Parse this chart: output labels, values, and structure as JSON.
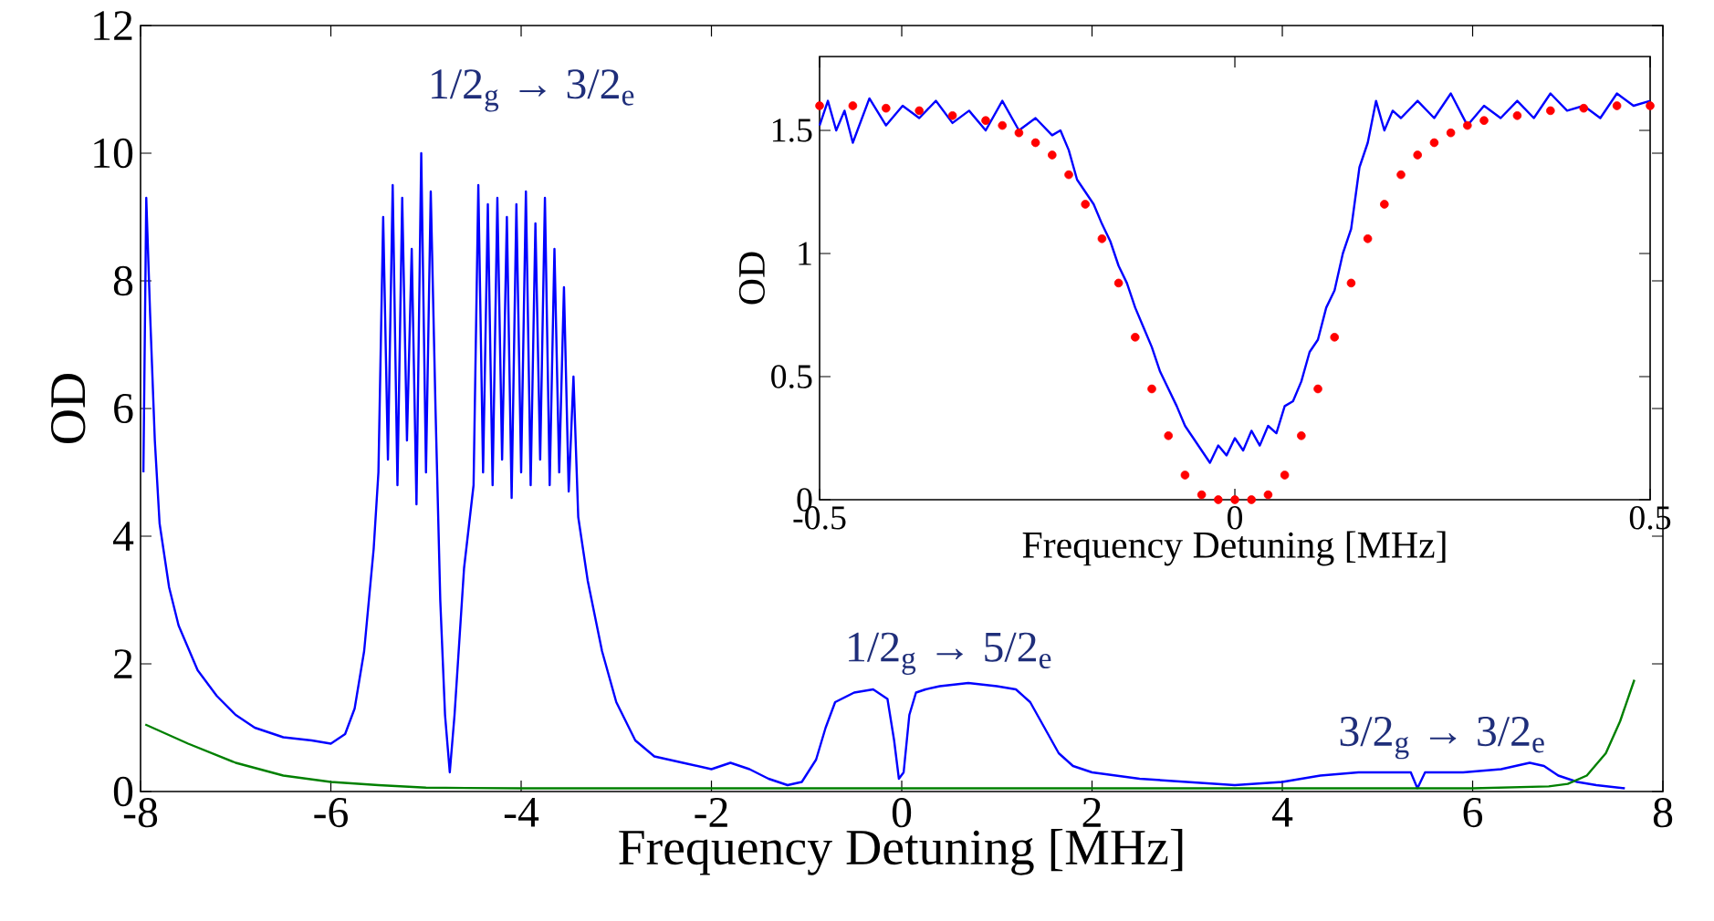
{
  "chart_data": [
    {
      "type": "line",
      "xlabel": "Frequency Detuning [MHz]",
      "ylabel": "OD",
      "xlim": [
        -8,
        8
      ],
      "ylim": [
        0,
        12
      ],
      "xticks": [
        -8,
        -6,
        -4,
        -2,
        0,
        2,
        4,
        6,
        8
      ],
      "yticks": [
        0,
        2,
        4,
        6,
        8,
        10,
        12
      ],
      "annotations": [
        "1/2$_{g}$ → 3/2$_{e}$",
        "1/2$_{g}$ → 5/2$_{e}$",
        "3/2$_{g}$ → 3/2$_{e}$"
      ],
      "series": [
        {
          "color": "#0000ff",
          "x": [
            -7.97,
            -7.94,
            -7.9,
            -7.85,
            -7.8,
            -7.7,
            -7.6,
            -7.4,
            -7.2,
            -7.0,
            -6.8,
            -6.5,
            -6.2,
            -6.0,
            -5.85,
            -5.75,
            -5.65,
            -5.55,
            -5.5,
            -5.45,
            -5.4,
            -5.35,
            -5.3,
            -5.25,
            -5.2,
            -5.15,
            -5.1,
            -5.05,
            -5.0,
            -4.95,
            -4.9,
            -4.85,
            -4.8,
            -4.75,
            -4.7,
            -4.6,
            -4.5,
            -4.45,
            -4.4,
            -4.35,
            -4.3,
            -4.25,
            -4.2,
            -4.15,
            -4.1,
            -4.05,
            -4.0,
            -3.95,
            -3.9,
            -3.85,
            -3.8,
            -3.75,
            -3.7,
            -3.65,
            -3.6,
            -3.55,
            -3.5,
            -3.45,
            -3.4,
            -3.3,
            -3.15,
            -3.0,
            -2.8,
            -2.6,
            -2.3,
            -2.0,
            -1.8,
            -1.6,
            -1.4,
            -1.2,
            -1.05,
            -0.9,
            -0.8,
            -0.7,
            -0.5,
            -0.3,
            -0.15,
            -0.08,
            -0.03,
            0.02,
            0.08,
            0.15,
            0.25,
            0.4,
            0.7,
            1.0,
            1.2,
            1.35,
            1.5,
            1.65,
            1.8,
            2.0,
            2.5,
            3.0,
            3.5,
            4.0,
            4.4,
            4.8,
            5.2,
            5.35,
            5.42,
            5.5,
            5.9,
            6.3,
            6.6,
            6.75,
            6.9,
            7.1,
            7.3,
            7.6
          ],
          "values": [
            5,
            9.3,
            7.5,
            5.5,
            4.2,
            3.2,
            2.6,
            1.9,
            1.5,
            1.2,
            1.0,
            0.85,
            0.8,
            0.75,
            0.9,
            1.3,
            2.2,
            3.8,
            5,
            9,
            5.2,
            9.5,
            4.8,
            9.3,
            5.5,
            8.5,
            4.5,
            10,
            5,
            9.4,
            6,
            3,
            1.2,
            0.3,
            1.2,
            3.5,
            4.8,
            9.5,
            5,
            9.2,
            4.8,
            9.3,
            5.2,
            9,
            4.6,
            9.2,
            5,
            9.4,
            4.8,
            8.9,
            5.2,
            9.3,
            4.8,
            8.5,
            5,
            7.9,
            4.7,
            6.5,
            4.3,
            3.3,
            2.2,
            1.4,
            0.8,
            0.55,
            0.45,
            0.35,
            0.45,
            0.35,
            0.2,
            0.1,
            0.15,
            0.5,
            1.0,
            1.4,
            1.55,
            1.6,
            1.45,
            0.8,
            0.2,
            0.3,
            1.2,
            1.55,
            1.6,
            1.65,
            1.7,
            1.65,
            1.6,
            1.4,
            1.0,
            0.6,
            0.4,
            0.3,
            0.2,
            0.15,
            0.1,
            0.15,
            0.25,
            0.3,
            0.3,
            0.3,
            0.05,
            0.3,
            0.3,
            0.35,
            0.45,
            0.4,
            0.25,
            0.15,
            0.1,
            0.05
          ]
        },
        {
          "color": "#008000",
          "x": [
            -7.95,
            -7.5,
            -7.0,
            -6.5,
            -6.0,
            -5.5,
            -5.0,
            -4.0,
            -2.0,
            0,
            2,
            4,
            6,
            6.8,
            7.0,
            7.2,
            7.4,
            7.55,
            7.7
          ],
          "values": [
            1.05,
            0.75,
            0.45,
            0.25,
            0.15,
            0.1,
            0.06,
            0.05,
            0.05,
            0.05,
            0.05,
            0.05,
            0.05,
            0.08,
            0.12,
            0.25,
            0.6,
            1.1,
            1.75
          ]
        }
      ]
    },
    {
      "type": "line",
      "xlabel": "Frequency Detuning [MHz]",
      "ylabel": "OD",
      "xlim": [
        -0.5,
        0.5
      ],
      "ylim": [
        0,
        1.8
      ],
      "xticks": [
        -0.5,
        0,
        0.5
      ],
      "yticks": [
        0,
        0.5,
        1,
        1.5
      ],
      "series": [
        {
          "color": "#0000ff",
          "x": [
            -0.5,
            -0.49,
            -0.48,
            -0.47,
            -0.46,
            -0.44,
            -0.42,
            -0.4,
            -0.38,
            -0.36,
            -0.34,
            -0.32,
            -0.3,
            -0.28,
            -0.26,
            -0.24,
            -0.22,
            -0.21,
            -0.2,
            -0.19,
            -0.18,
            -0.17,
            -0.16,
            -0.15,
            -0.14,
            -0.13,
            -0.12,
            -0.11,
            -0.1,
            -0.09,
            -0.08,
            -0.07,
            -0.06,
            -0.05,
            -0.04,
            -0.03,
            -0.02,
            -0.01,
            0,
            0.01,
            0.02,
            0.03,
            0.04,
            0.05,
            0.06,
            0.07,
            0.08,
            0.09,
            0.1,
            0.11,
            0.12,
            0.13,
            0.14,
            0.15,
            0.16,
            0.17,
            0.18,
            0.19,
            0.2,
            0.22,
            0.24,
            0.26,
            0.28,
            0.3,
            0.32,
            0.34,
            0.36,
            0.38,
            0.4,
            0.42,
            0.44,
            0.46,
            0.48,
            0.5
          ],
          "values": [
            1.52,
            1.62,
            1.5,
            1.58,
            1.45,
            1.63,
            1.52,
            1.6,
            1.55,
            1.62,
            1.53,
            1.58,
            1.5,
            1.62,
            1.5,
            1.55,
            1.48,
            1.5,
            1.42,
            1.3,
            1.25,
            1.2,
            1.12,
            1.05,
            0.95,
            0.88,
            0.78,
            0.7,
            0.62,
            0.52,
            0.45,
            0.38,
            0.3,
            0.25,
            0.2,
            0.15,
            0.22,
            0.18,
            0.25,
            0.2,
            0.28,
            0.22,
            0.3,
            0.27,
            0.38,
            0.4,
            0.48,
            0.6,
            0.65,
            0.78,
            0.85,
            1.0,
            1.1,
            1.35,
            1.45,
            1.62,
            1.5,
            1.58,
            1.55,
            1.62,
            1.55,
            1.65,
            1.52,
            1.6,
            1.55,
            1.62,
            1.55,
            1.65,
            1.58,
            1.6,
            1.55,
            1.65,
            1.6,
            1.62
          ]
        },
        {
          "type": "scatter",
          "color": "#ff0000",
          "x": [
            -0.5,
            -0.46,
            -0.42,
            -0.38,
            -0.34,
            -0.3,
            -0.28,
            -0.26,
            -0.24,
            -0.22,
            -0.2,
            -0.18,
            -0.16,
            -0.14,
            -0.12,
            -0.1,
            -0.08,
            -0.06,
            -0.04,
            -0.02,
            0,
            0.02,
            0.04,
            0.06,
            0.08,
            0.1,
            0.12,
            0.14,
            0.16,
            0.18,
            0.2,
            0.22,
            0.24,
            0.26,
            0.28,
            0.3,
            0.34,
            0.38,
            0.42,
            0.46,
            0.5
          ],
          "values": [
            1.6,
            1.6,
            1.59,
            1.58,
            1.56,
            1.54,
            1.52,
            1.49,
            1.45,
            1.4,
            1.32,
            1.2,
            1.06,
            0.88,
            0.66,
            0.45,
            0.26,
            0.1,
            0.02,
            0,
            0,
            0,
            0.02,
            0.1,
            0.26,
            0.45,
            0.66,
            0.88,
            1.06,
            1.2,
            1.32,
            1.4,
            1.45,
            1.49,
            1.52,
            1.54,
            1.56,
            1.58,
            1.59,
            1.6,
            1.6
          ]
        }
      ]
    }
  ]
}
